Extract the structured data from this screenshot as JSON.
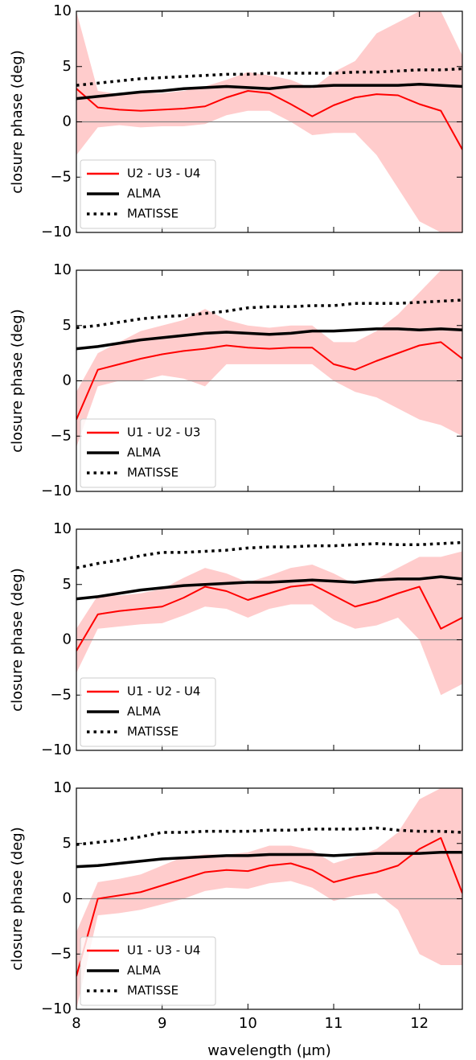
{
  "chart_data": [
    {
      "type": "line",
      "ylabel": "closure phase (deg)",
      "x": [
        8,
        8.25,
        8.5,
        8.75,
        9,
        9.25,
        9.5,
        9.75,
        10,
        10.25,
        10.5,
        10.75,
        11,
        11.25,
        11.5,
        11.75,
        12,
        12.25,
        12.5
      ],
      "xlim": [
        8,
        12.5
      ],
      "xticks": [
        8,
        9,
        10,
        11,
        12
      ],
      "ylim": [
        -10,
        10
      ],
      "yticks": [
        {
          "value": -10,
          "label": "−10"
        },
        {
          "value": -5,
          "label": "−5"
        },
        0,
        5,
        10
      ],
      "reference_line": 0,
      "legend": "lower left",
      "series": [
        {
          "name": "U2 - U3 - U4",
          "color": "#ff0000",
          "linestyle": "solid",
          "values": [
            3.0,
            1.3,
            1.1,
            1.0,
            1.1,
            1.2,
            1.4,
            2.2,
            2.8,
            2.6,
            1.6,
            0.5,
            1.5,
            2.2,
            2.5,
            2.4,
            1.6,
            1.0,
            -2.5
          ],
          "upper": [
            10,
            2.8,
            2.5,
            2.6,
            2.6,
            2.8,
            3.2,
            3.8,
            4.5,
            4.2,
            3.8,
            3.0,
            4.5,
            5.5,
            8,
            9,
            10,
            10,
            6
          ],
          "lower": [
            -3,
            -0.5,
            -0.3,
            -0.5,
            -0.4,
            -0.4,
            -0.2,
            0.6,
            1.0,
            1.0,
            0,
            -1.2,
            -1,
            -1.0,
            -3,
            -6,
            -9,
            -10,
            -10
          ]
        },
        {
          "name": "ALMA",
          "color": "#000000",
          "linestyle": "solid",
          "values": [
            2.1,
            2.3,
            2.5,
            2.7,
            2.8,
            3.0,
            3.1,
            3.2,
            3.1,
            3.0,
            3.2,
            3.2,
            3.3,
            3.3,
            3.3,
            3.3,
            3.4,
            3.3,
            3.2
          ]
        },
        {
          "name": "MATISSE",
          "color": "#000000",
          "linestyle": "dotted",
          "values": [
            3.3,
            3.5,
            3.7,
            3.9,
            4.0,
            4.1,
            4.2,
            4.3,
            4.3,
            4.4,
            4.4,
            4.4,
            4.4,
            4.5,
            4.5,
            4.6,
            4.7,
            4.7,
            4.8
          ]
        }
      ]
    },
    {
      "type": "line",
      "ylabel": "closure phase (deg)",
      "x": [
        8,
        8.25,
        8.5,
        8.75,
        9,
        9.25,
        9.5,
        9.75,
        10,
        10.25,
        10.5,
        10.75,
        11,
        11.25,
        11.5,
        11.75,
        12,
        12.25,
        12.5
      ],
      "xlim": [
        8,
        12.5
      ],
      "xticks": [
        8,
        9,
        10,
        11,
        12
      ],
      "ylim": [
        -10,
        10
      ],
      "yticks": [
        {
          "value": -10,
          "label": "−10"
        },
        {
          "value": -5,
          "label": "−5"
        },
        0,
        5,
        10
      ],
      "reference_line": 0,
      "legend": "lower left",
      "series": [
        {
          "name": "U1 - U2 - U3",
          "color": "#ff0000",
          "linestyle": "solid",
          "values": [
            -3.5,
            1.0,
            1.5,
            2.0,
            2.4,
            2.7,
            2.9,
            3.2,
            3.0,
            2.9,
            3.0,
            3.0,
            1.5,
            1.0,
            1.8,
            2.5,
            3.2,
            3.5,
            2.0
          ],
          "upper": [
            -1,
            2.5,
            3.5,
            4.5,
            5,
            5.5,
            6.5,
            5.5,
            5.0,
            4.8,
            5,
            5,
            3.5,
            3.5,
            4.5,
            6,
            8,
            10,
            10
          ],
          "lower": [
            -6,
            -0.5,
            0,
            0,
            0.5,
            0.2,
            -0.5,
            1.5,
            1.5,
            1.5,
            1.5,
            1.5,
            0,
            -1,
            -1.5,
            -2.5,
            -3.5,
            -4,
            -5
          ]
        },
        {
          "name": "ALMA",
          "color": "#000000",
          "linestyle": "solid",
          "values": [
            2.9,
            3.1,
            3.4,
            3.7,
            3.9,
            4.1,
            4.3,
            4.4,
            4.3,
            4.2,
            4.3,
            4.5,
            4.5,
            4.6,
            4.7,
            4.7,
            4.6,
            4.7,
            4.6
          ]
        },
        {
          "name": "MATISSE",
          "color": "#000000",
          "linestyle": "dotted",
          "values": [
            4.8,
            5.0,
            5.3,
            5.6,
            5.8,
            5.9,
            6.1,
            6.3,
            6.6,
            6.7,
            6.7,
            6.8,
            6.8,
            7.0,
            7.0,
            7.0,
            7.1,
            7.2,
            7.3
          ]
        }
      ]
    },
    {
      "type": "line",
      "ylabel": "closure phase (deg)",
      "x": [
        8,
        8.25,
        8.5,
        8.75,
        9,
        9.25,
        9.5,
        9.75,
        10,
        10.25,
        10.5,
        10.75,
        11,
        11.25,
        11.5,
        11.75,
        12,
        12.25,
        12.5
      ],
      "xlim": [
        8,
        12.5
      ],
      "xticks": [
        8,
        9,
        10,
        11,
        12
      ],
      "ylim": [
        -10,
        10
      ],
      "yticks": [
        {
          "value": -10,
          "label": "−10"
        },
        {
          "value": -5,
          "label": "−5"
        },
        0,
        5,
        10
      ],
      "reference_line": 0,
      "legend": "lower left",
      "series": [
        {
          "name": "U1 - U2 - U4",
          "color": "#ff0000",
          "linestyle": "solid",
          "values": [
            -1,
            2.3,
            2.6,
            2.8,
            3.0,
            3.8,
            4.8,
            4.4,
            3.6,
            4.2,
            4.8,
            5.0,
            4.0,
            3.0,
            3.5,
            4.2,
            4.8,
            1.0,
            2.0
          ],
          "upper": [
            1,
            4,
            4,
            4.2,
            4.6,
            5.6,
            6.5,
            6,
            5.2,
            5.8,
            6.5,
            6.8,
            6,
            5,
            5.5,
            6.5,
            7.5,
            7.5,
            8
          ],
          "lower": [
            -3,
            1,
            1.2,
            1.4,
            1.5,
            2.2,
            3,
            2.8,
            2.0,
            2.8,
            3.2,
            3.2,
            1.8,
            1,
            1.3,
            2,
            0,
            -5,
            -4
          ]
        },
        {
          "name": "ALMA",
          "color": "#000000",
          "linestyle": "solid",
          "values": [
            3.7,
            3.9,
            4.2,
            4.5,
            4.7,
            4.9,
            5.0,
            5.1,
            5.2,
            5.2,
            5.3,
            5.4,
            5.3,
            5.2,
            5.4,
            5.5,
            5.5,
            5.7,
            5.5
          ]
        },
        {
          "name": "MATISSE",
          "color": "#000000",
          "linestyle": "dotted",
          "values": [
            6.5,
            6.9,
            7.2,
            7.6,
            7.9,
            7.9,
            8.0,
            8.1,
            8.3,
            8.4,
            8.4,
            8.5,
            8.5,
            8.6,
            8.7,
            8.6,
            8.6,
            8.7,
            8.8
          ]
        }
      ]
    },
    {
      "type": "line",
      "ylabel": "closure phase (deg)",
      "xlabel": "wavelength (μm)",
      "x": [
        8,
        8.25,
        8.5,
        8.75,
        9,
        9.25,
        9.5,
        9.75,
        10,
        10.25,
        10.5,
        10.75,
        11,
        11.25,
        11.5,
        11.75,
        12,
        12.25,
        12.5
      ],
      "xlim": [
        8,
        12.5
      ],
      "xticks": [
        8,
        9,
        10,
        11,
        12
      ],
      "ylim": [
        -10,
        10
      ],
      "yticks": [
        {
          "value": -10,
          "label": "−10"
        },
        {
          "value": -5,
          "label": "−5"
        },
        0,
        5,
        10
      ],
      "reference_line": 0,
      "legend": "lower left",
      "series": [
        {
          "name": "U1 - U3 - U4",
          "color": "#ff0000",
          "linestyle": "solid",
          "values": [
            -7,
            0,
            0.3,
            0.6,
            1.2,
            1.8,
            2.4,
            2.6,
            2.5,
            3.0,
            3.2,
            2.6,
            1.5,
            2.0,
            2.4,
            3.0,
            4.5,
            5.5,
            0.5
          ],
          "upper": [
            -3,
            1.5,
            1.8,
            2.2,
            3.0,
            3.8,
            4.0,
            4.0,
            4.2,
            4.8,
            4.8,
            4.4,
            3.2,
            3.8,
            4.5,
            6,
            9,
            10,
            10
          ],
          "lower": [
            -10,
            -1.5,
            -1.3,
            -1.0,
            -0.5,
            0,
            0.7,
            1,
            0.9,
            1.4,
            1.6,
            1.0,
            -0.2,
            0.3,
            0.5,
            -1,
            -5,
            -6,
            -6
          ]
        },
        {
          "name": "ALMA",
          "color": "#000000",
          "linestyle": "solid",
          "values": [
            2.9,
            3.0,
            3.2,
            3.4,
            3.6,
            3.7,
            3.8,
            3.9,
            3.9,
            4.0,
            4.0,
            4.0,
            3.9,
            4.0,
            4.1,
            4.1,
            4.1,
            4.2,
            4.2
          ]
        },
        {
          "name": "MATISSE",
          "color": "#000000",
          "linestyle": "dotted",
          "values": [
            4.9,
            5.1,
            5.3,
            5.6,
            6.0,
            6.0,
            6.1,
            6.1,
            6.1,
            6.2,
            6.2,
            6.3,
            6.3,
            6.3,
            6.4,
            6.2,
            6.1,
            6.1,
            6.0
          ]
        }
      ]
    }
  ]
}
